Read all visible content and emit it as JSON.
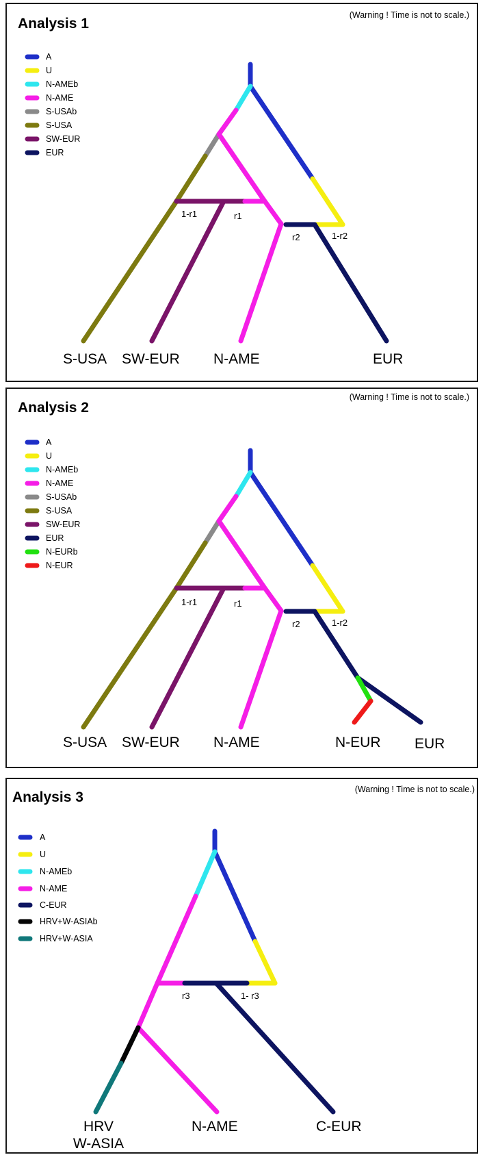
{
  "colors": {
    "A": "#1e2fc8",
    "U": "#f5ee10",
    "N-AMEb": "#2ee6ee",
    "N-AME": "#f51ee6",
    "S-USAb": "#8a8a8a",
    "S-USA": "#7d7a10",
    "SW-EUR": "#7a1468",
    "EUR": "#0d1460",
    "N-EURb": "#22e010",
    "N-EUR": "#ee1a1a",
    "C-EUR": "#0d1460",
    "HRV+W-ASIAb": "#050505",
    "HRV+W-ASIA": "#10787a"
  },
  "panels": [
    {
      "title": "Analysis 1",
      "warning": "(Warning ! Time is not to scale.)",
      "legend": [
        "A",
        "U",
        "N-AMEb",
        "N-AME",
        "S-USAb",
        "S-USA",
        "SW-EUR",
        "EUR"
      ],
      "leaves": [
        "S-USA",
        "SW-EUR",
        "N-AME",
        "EUR"
      ],
      "params": [
        "1-r1",
        "r1",
        "r2",
        "1-r2"
      ]
    },
    {
      "title": "Analysis 2",
      "warning": "(Warning ! Time is not to scale.)",
      "legend": [
        "A",
        "U",
        "N-AMEb",
        "N-AME",
        "S-USAb",
        "S-USA",
        "SW-EUR",
        "EUR",
        "N-EURb",
        "N-EUR"
      ],
      "leaves": [
        "S-USA",
        "SW-EUR",
        "N-AME",
        "N-EUR",
        "EUR"
      ],
      "params": [
        "1-r1",
        "r1",
        "r2",
        "1-r2"
      ]
    },
    {
      "title": "Analysis 3",
      "warning": "(Warning ! Time is not to scale.)",
      "legend": [
        "A",
        "U",
        "N-AMEb",
        "N-AME",
        "C-EUR",
        "HRV+W-ASIAb",
        "HRV+W-ASIA"
      ],
      "leaves": [
        "HRV",
        "W-ASIA",
        "N-AME",
        "C-EUR"
      ],
      "params": [
        "r3",
        "1- r3"
      ]
    }
  ]
}
